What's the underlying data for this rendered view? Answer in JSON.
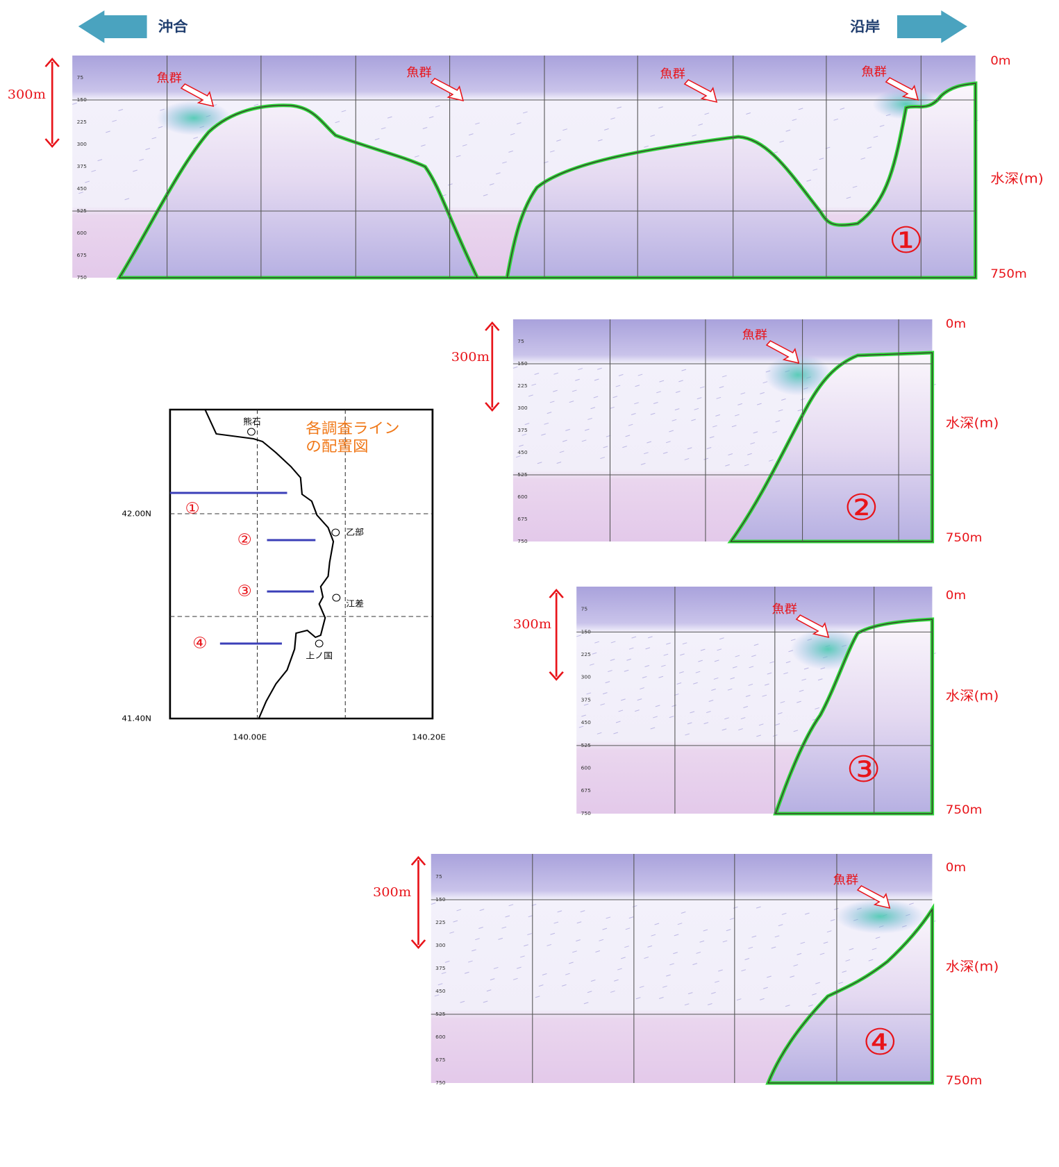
{
  "header": {
    "left": "沖合",
    "right": "沿岸"
  },
  "depth_ticks": [
    75,
    150,
    225,
    300,
    375,
    450,
    525,
    600,
    675,
    750
  ],
  "panels": [
    {
      "number": "①",
      "top": "0m",
      "bottom": "750m",
      "span": "300m",
      "axis": "水深(m)",
      "fish": [
        "魚群",
        "魚群",
        "魚群",
        "魚群"
      ]
    },
    {
      "number": "②",
      "top": "0m",
      "bottom": "750m",
      "span": "300m",
      "axis": "水深(m)",
      "fish": [
        "魚群"
      ]
    },
    {
      "number": "③",
      "top": "0m",
      "bottom": "750m",
      "span": "300m",
      "axis": "水深(m)",
      "fish": [
        "魚群"
      ]
    },
    {
      "number": "④",
      "top": "0m",
      "bottom": "750m",
      "span": "300m",
      "axis": "水深(m)",
      "fish": [
        "魚群"
      ]
    }
  ],
  "map": {
    "title": [
      "各調査ライン",
      "の配置図"
    ],
    "places": [
      "熊石",
      "乙部",
      "江差",
      "上ノ国"
    ],
    "lat": [
      "42.00N",
      "41.40N"
    ],
    "lon": [
      "140.00E",
      "140.20E"
    ],
    "lines": [
      "①",
      "②",
      "③",
      "④"
    ]
  }
}
